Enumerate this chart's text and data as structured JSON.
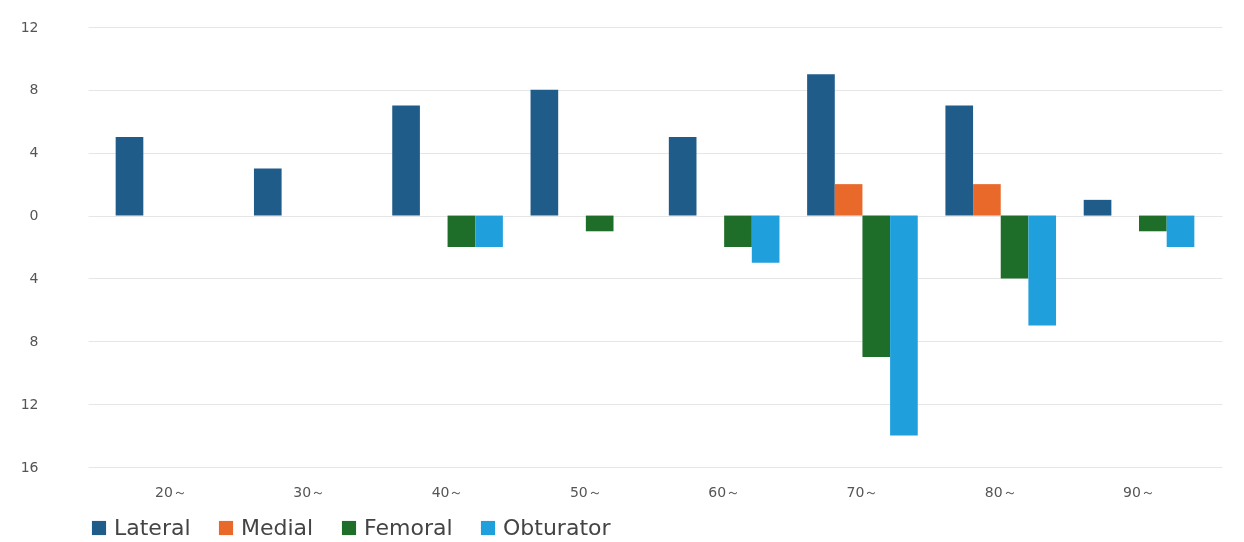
{
  "chart_data": {
    "type": "bar",
    "categories": [
      "20～",
      "30～",
      "40～",
      "50～",
      "60～",
      "70～",
      "80～",
      "90～"
    ],
    "series": [
      {
        "name": "Lateral",
        "color": "#1f5c8a",
        "values": [
          5,
          3,
          7,
          8,
          5,
          9,
          7,
          1
        ]
      },
      {
        "name": "Medial",
        "color": "#e8692a",
        "values": [
          0,
          0,
          0,
          0,
          0,
          2,
          2,
          0
        ]
      },
      {
        "name": "Femoral",
        "color": "#1e6e2a",
        "values": [
          0,
          0,
          -2,
          -1,
          -2,
          -9,
          -4,
          -1
        ]
      },
      {
        "name": "Obturator",
        "color": "#1fa0dc",
        "values": [
          0,
          0,
          -2,
          0,
          -3,
          -14,
          -7,
          -2
        ]
      }
    ],
    "ylim": [
      -16,
      12
    ],
    "yticks": [
      12,
      8,
      4,
      0,
      {
        "value": -4,
        "label": "4"
      },
      {
        "value": -8,
        "label": "8"
      },
      {
        "value": -12,
        "label": "12"
      },
      {
        "value": -16,
        "label": "16"
      }
    ],
    "grid": "y",
    "legend": "bottom"
  }
}
